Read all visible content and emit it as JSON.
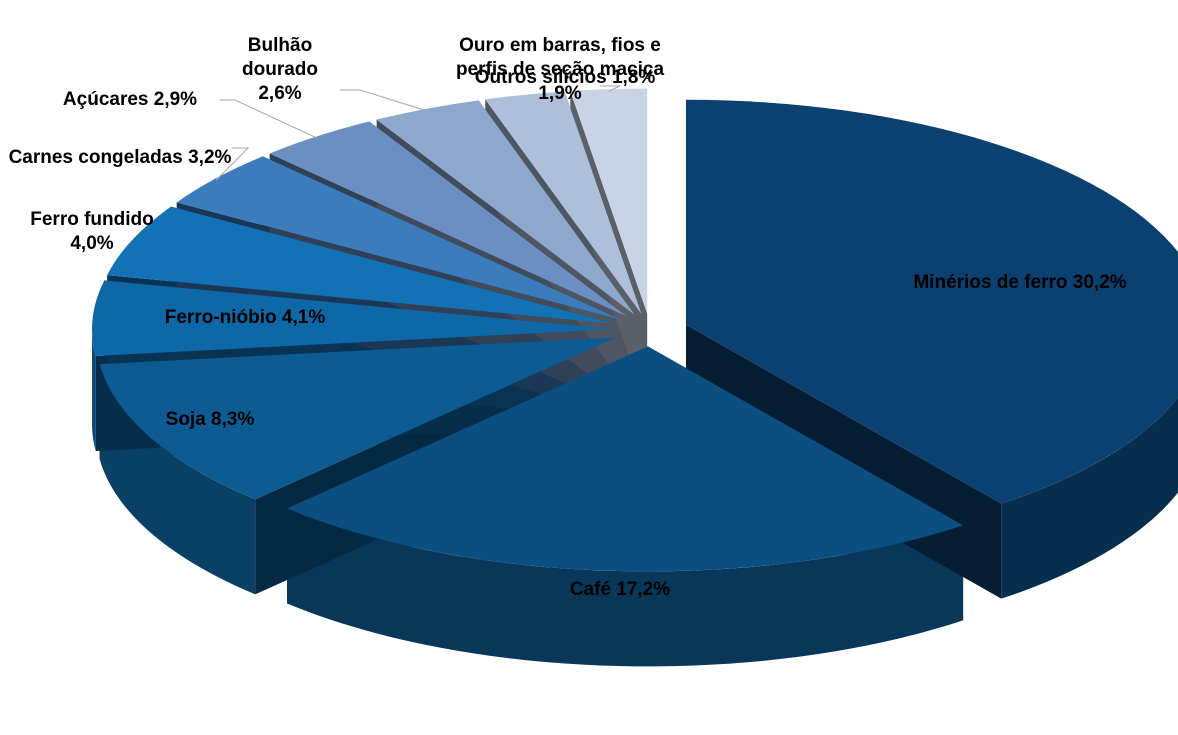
{
  "chart_data": {
    "type": "pie3d",
    "categories": [
      "Minérios de ferro",
      "Café",
      "Soja",
      "Ferro-nióbio",
      "Ferro fundido",
      "Carnes congeladas",
      "Açúcares",
      "Bulhão dourado",
      "Ouro em barras, fios e perfis de seção maciça",
      "Outros silícios"
    ],
    "values": [
      30.2,
      17.2,
      8.3,
      4.1,
      4.0,
      3.2,
      2.9,
      2.6,
      1.9,
      1.8
    ],
    "value_labels": [
      "30,2%",
      "17,2%",
      "8,3%",
      "4,1%",
      "4,0%",
      "3,2%",
      "2,9%",
      "2,6%",
      "1,9%",
      "1,8%"
    ],
    "colors": [
      "#0a4170",
      "#0b4f80",
      "#0c5b92",
      "#0e67a6",
      "#1371b6",
      "#3a7cbc",
      "#6b8fc2",
      "#8ea7cc",
      "#aebfdc",
      "#c9d3e6"
    ]
  }
}
